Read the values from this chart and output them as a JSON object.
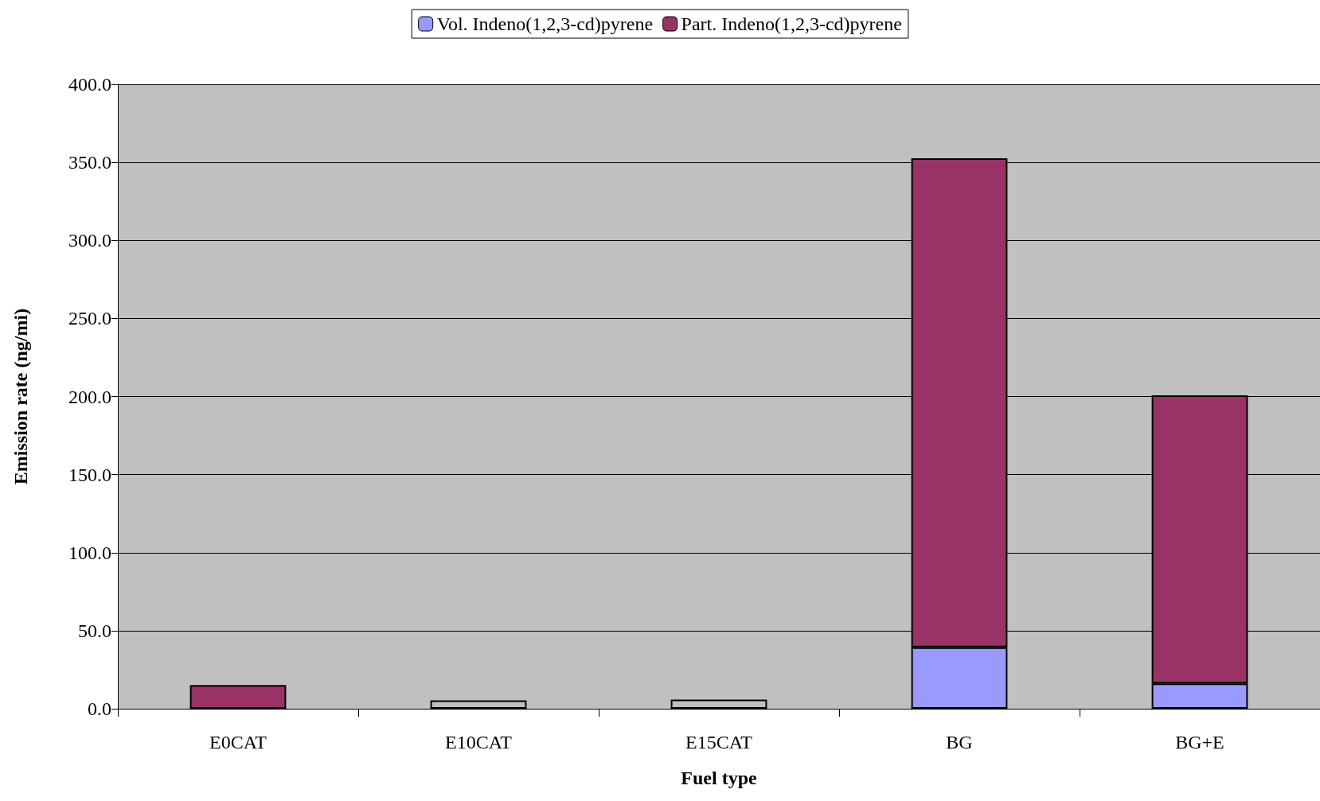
{
  "chart_data": {
    "type": "bar",
    "stacked": true,
    "xlabel": "Fuel type",
    "ylabel": "Emission rate (ng/mi)",
    "categories": [
      "E0CAT",
      "E10CAT",
      "E15CAT",
      "BG",
      "BG+E"
    ],
    "series": [
      {
        "name": "Vol. Indeno(1,2,3-cd)pyrene",
        "color": "#9999ff",
        "values": [
          0,
          0,
          0,
          39.3,
          16.2
        ]
      },
      {
        "name": "Part. Indeno(1,2,3-cd)pyrene",
        "color": "#993366",
        "colors": [
          "#993366",
          "#c0c0c0",
          "#c0c0c0",
          "#993366",
          "#993366"
        ],
        "values": [
          15.1,
          5.4,
          5.9,
          313.3,
          184.6
        ]
      }
    ],
    "ylim": [
      0,
      400
    ],
    "yticks": [
      {
        "value": 0,
        "label": "0.0"
      },
      {
        "value": 50,
        "label": "50.0"
      },
      {
        "value": 100,
        "label": "100.0"
      },
      {
        "value": 150,
        "label": "150.0"
      },
      {
        "value": 200,
        "label": "200.0"
      },
      {
        "value": 250,
        "label": "250.0"
      },
      {
        "value": 300,
        "label": "300.0"
      },
      {
        "value": 350,
        "label": "350.0"
      },
      {
        "value": 400,
        "label": "400.0"
      }
    ],
    "grid": "y",
    "legend": "top"
  }
}
